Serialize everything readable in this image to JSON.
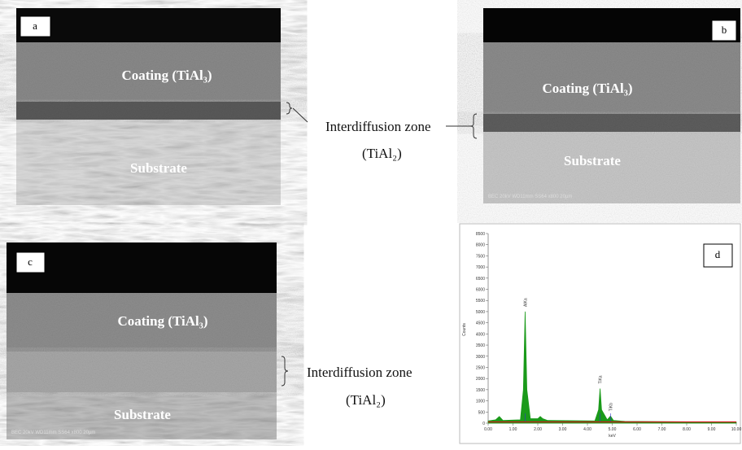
{
  "panels": [
    {
      "label": "a",
      "coating": "Coating (TiAl₃)",
      "substrate": "Substrate"
    },
    {
      "label": "b",
      "coating": "Coating (TiAl₃)",
      "substrate": "Substrate",
      "footer": "BEC 20kV WD11mm SS64 x800 20µm"
    },
    {
      "label": "c",
      "coating": "Coating (TiAl₃)",
      "substrate": "Substrate",
      "footer": "BEC 20kV WD11mm SS64 x800 20µm"
    },
    {
      "label": "d"
    }
  ],
  "zone_labels": [
    {
      "name": "Interdiffusion zone",
      "formula": "(TiAl₂)"
    },
    {
      "name": "Interdiffusion zone",
      "formula": "(TiAl₂)"
    }
  ],
  "chart_data": {
    "type": "area",
    "ylabel": "Counts",
    "xlabel": "keV",
    "color": "#1a9a1a",
    "baseline_color": "#d01818",
    "x": [
      0,
      0.3,
      0.45,
      0.6,
      1.3,
      1.42,
      1.49,
      1.56,
      1.7,
      2.0,
      2.1,
      2.2,
      2.4,
      4.3,
      4.45,
      4.51,
      4.57,
      4.8,
      4.93,
      5.05,
      5.5,
      10
    ],
    "values": [
      100,
      150,
      300,
      120,
      150,
      1500,
      5000,
      1500,
      200,
      200,
      300,
      200,
      120,
      100,
      600,
      1550,
      600,
      150,
      320,
      120,
      80,
      40
    ],
    "xlim": [
      0,
      10
    ],
    "xticks": [
      {
        "value": 0,
        "label": "0.00"
      },
      {
        "value": 1,
        "label": "1.00"
      },
      {
        "value": 2,
        "label": "2.00"
      },
      {
        "value": 3,
        "label": "3.00"
      },
      {
        "value": 4,
        "label": "4.00"
      },
      {
        "value": 5,
        "label": "5.00"
      },
      {
        "value": 6,
        "label": "6.00"
      },
      {
        "value": 7,
        "label": "7.00"
      },
      {
        "value": 8,
        "label": "8.00"
      },
      {
        "value": 9,
        "label": "9.00"
      },
      {
        "value": 10,
        "label": "10.00"
      }
    ],
    "ylim": [
      0,
      8500
    ],
    "yticks": [
      0,
      500,
      1000,
      1500,
      2000,
      2500,
      3000,
      3500,
      4000,
      4500,
      5000,
      5500,
      6000,
      6500,
      7000,
      7500,
      8000,
      8500
    ],
    "annotations": [
      {
        "text": "AlKa",
        "x": 1.49
      },
      {
        "text": "TiKa",
        "x": 4.51
      },
      {
        "text": "TiKb",
        "x": 4.93
      }
    ]
  }
}
